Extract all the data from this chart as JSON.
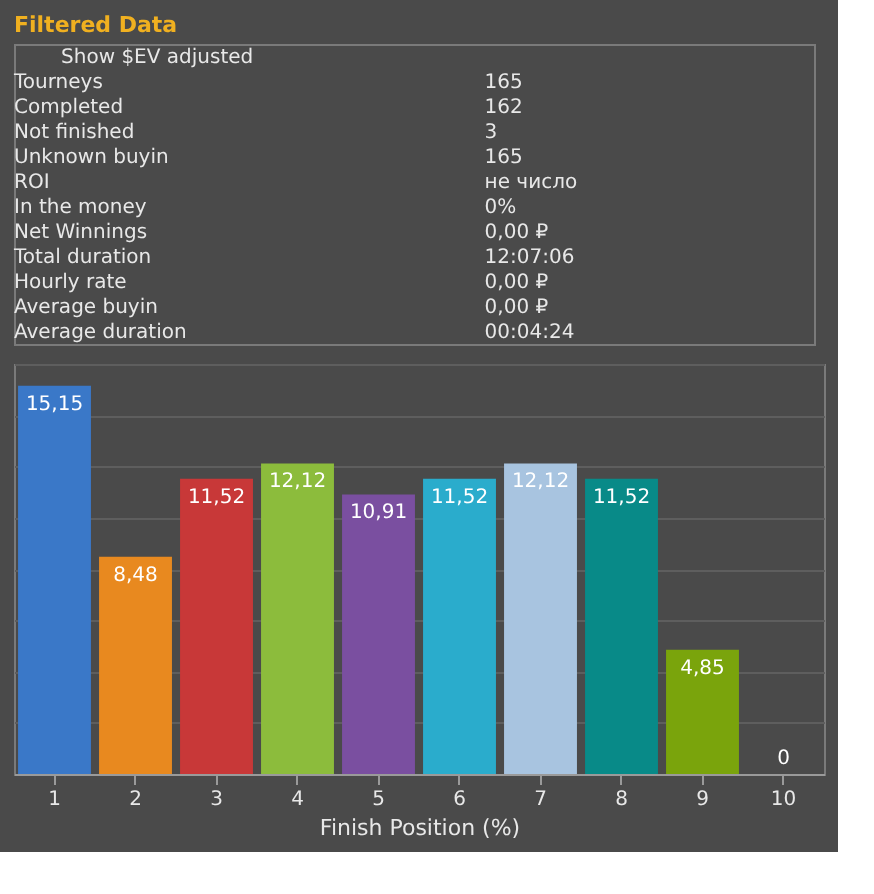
{
  "chart_data": [
    {
      "type": "other",
      "title": "Filtered Data",
      "annotations": [
        "Show $EV adjusted",
        "Tourneys",
        "165",
        " Completed",
        "162",
        " Not finished",
        "3",
        " Unknown buyin",
        "165",
        "ROI",
        "не число",
        "In the money",
        "0%",
        "Net Winnings",
        "0,00 ₽",
        "Total duration",
        "12:07:06",
        "Hourly rate",
        "0,00 ₽",
        "Average buyin",
        "0,00 ₽",
        "Average duration",
        "00:04:24"
      ]
    },
    {
      "type": "bar",
      "xlabel": "Finish Position (%)",
      "categories": [
        "1",
        "2",
        "3",
        "4",
        "5",
        "6",
        "7",
        "8",
        "9",
        "10"
      ],
      "values": [
        15.15,
        8.48,
        11.52,
        12.12,
        10.91,
        11.52,
        12.12,
        11.52,
        4.85,
        0
      ],
      "colors": [
        "#3a78c8",
        "#e8891f",
        "#c83838",
        "#8cbc3c",
        "#7a4fa0",
        "#2aaccc",
        "#a8c4e0",
        "#088a88",
        "#7aa40c",
        "#6a9a08"
      ],
      "value_labels": [
        "15,15",
        "8,48",
        "11,52",
        "12,12",
        "10,91",
        "11,52",
        "12,12",
        "11,52",
        "4,85",
        "0"
      ],
      "grid": "y",
      "tick_labels": "x"
    }
  ]
}
